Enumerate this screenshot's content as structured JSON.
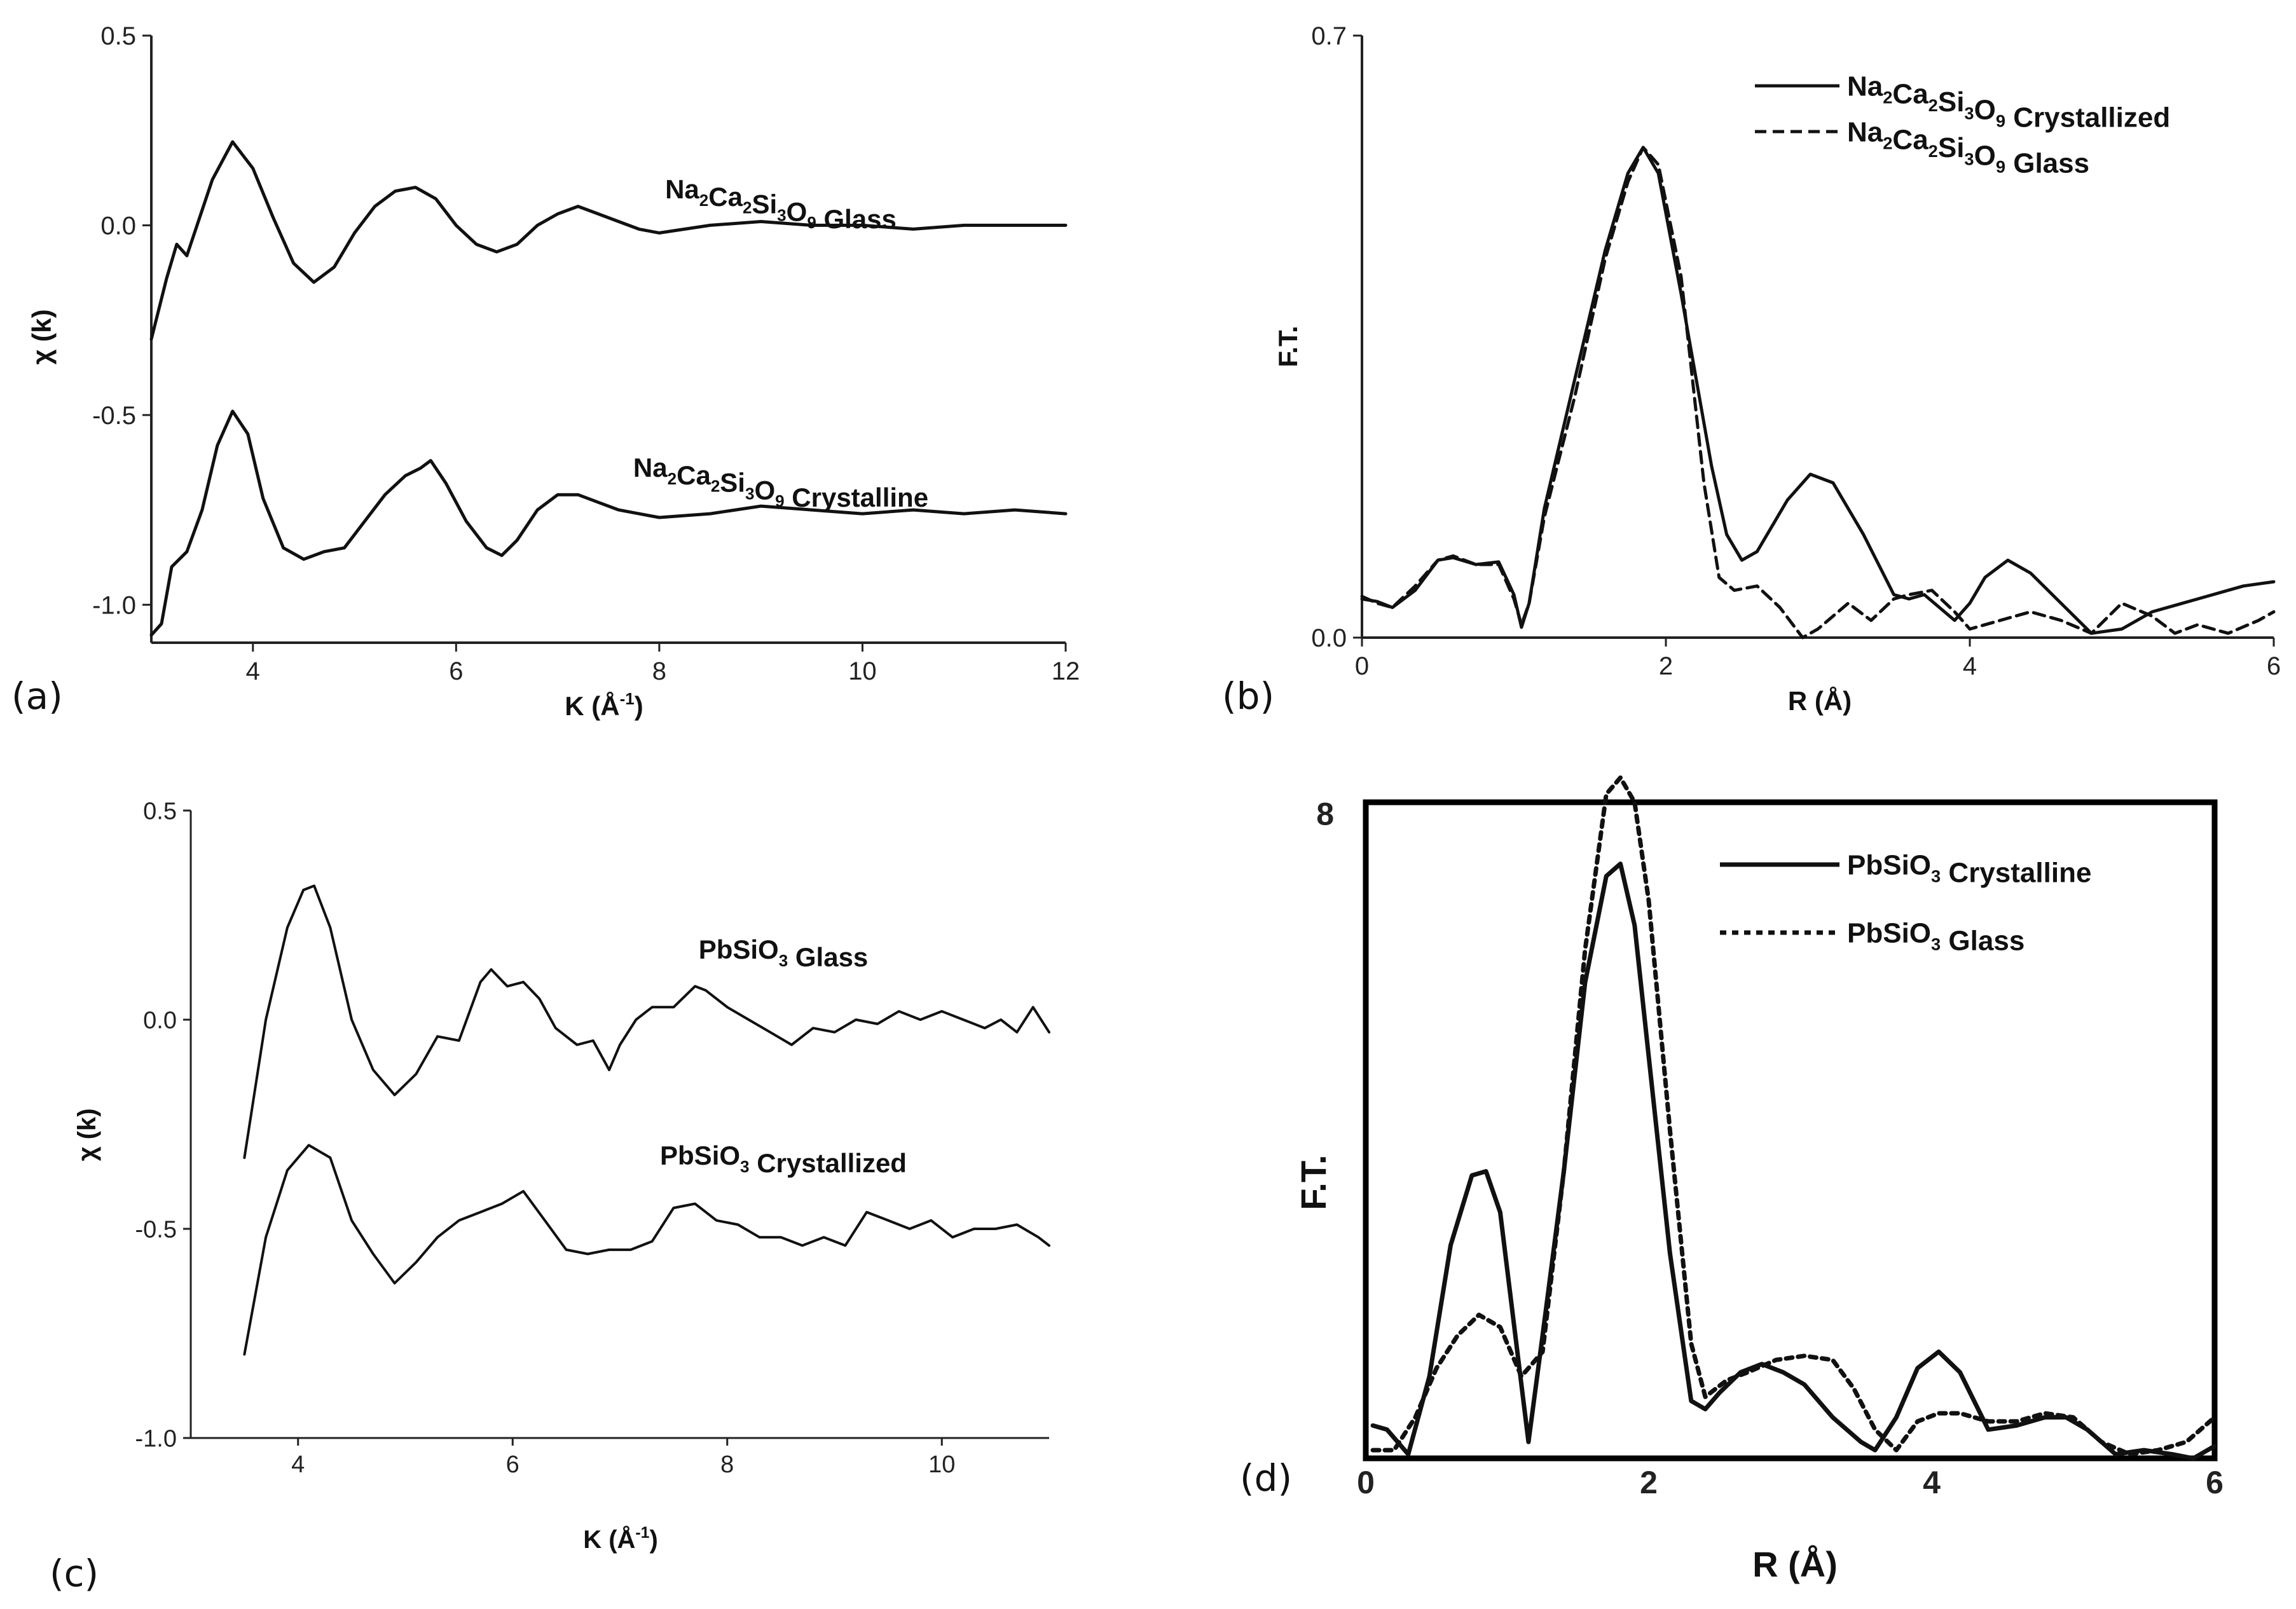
{
  "chart_data": [
    {
      "panel": "(a)",
      "type": "line",
      "xlabel": "K (Å⁻¹)",
      "ylabel": "χ (k)",
      "xlim": [
        3,
        12
      ],
      "ylim": [
        -1.1,
        0.5
      ],
      "xticks": [
        4,
        6,
        8,
        10,
        12
      ],
      "yticks": [
        0.5,
        0.0,
        -0.5,
        -1.0
      ],
      "xtick_labels": [
        "4",
        "6",
        "8",
        "10",
        "12"
      ],
      "ytick_labels": [
        "0.5",
        "0.0",
        "-0.5",
        "-1.0"
      ],
      "series": [
        {
          "name": "Na₂Ca₂Si₃O₉ Glass",
          "style": "solid",
          "x": [
            3.0,
            3.15,
            3.25,
            3.35,
            3.45,
            3.6,
            3.8,
            4.0,
            4.2,
            4.4,
            4.6,
            4.8,
            5.0,
            5.2,
            5.4,
            5.6,
            5.8,
            6.0,
            6.2,
            6.4,
            6.6,
            6.8,
            7.0,
            7.2,
            7.4,
            7.6,
            7.8,
            8.0,
            8.5,
            9.0,
            9.5,
            10.0,
            10.5,
            11.0,
            11.5,
            12.0
          ],
          "y": [
            -0.3,
            -0.14,
            -0.05,
            -0.08,
            0.0,
            0.12,
            0.22,
            0.15,
            0.02,
            -0.1,
            -0.15,
            -0.11,
            -0.02,
            0.05,
            0.09,
            0.1,
            0.07,
            0.0,
            -0.05,
            -0.07,
            -0.05,
            0.0,
            0.03,
            0.05,
            0.03,
            0.01,
            -0.01,
            -0.02,
            0.0,
            0.01,
            0.0,
            0.0,
            -0.01,
            0.0,
            0.0,
            0.0
          ]
        },
        {
          "name": "Na₂Ca₂Si₃O₉ Crystalline",
          "style": "solid",
          "x": [
            3.0,
            3.1,
            3.2,
            3.35,
            3.5,
            3.65,
            3.8,
            3.95,
            4.1,
            4.3,
            4.5,
            4.7,
            4.9,
            5.1,
            5.3,
            5.5,
            5.65,
            5.75,
            5.9,
            6.1,
            6.3,
            6.45,
            6.6,
            6.8,
            7.0,
            7.2,
            7.4,
            7.6,
            7.8,
            8.0,
            8.5,
            9.0,
            9.5,
            10.0,
            10.5,
            11.0,
            11.5,
            12.0
          ],
          "y": [
            -1.08,
            -1.05,
            -0.9,
            -0.86,
            -0.75,
            -0.58,
            -0.49,
            -0.55,
            -0.72,
            -0.85,
            -0.88,
            -0.86,
            -0.85,
            -0.78,
            -0.71,
            -0.66,
            -0.64,
            -0.62,
            -0.68,
            -0.78,
            -0.85,
            -0.87,
            -0.83,
            -0.75,
            -0.71,
            -0.71,
            -0.73,
            -0.75,
            -0.76,
            -0.77,
            -0.76,
            -0.74,
            -0.75,
            -0.76,
            -0.75,
            -0.76,
            -0.75,
            -0.76
          ]
        }
      ],
      "annotations": [
        {
          "series": "Na₂Ca₂Si₃O₉ Glass",
          "x": 8.0,
          "y": 0.085
        },
        {
          "series": "Na₂Ca₂Si₃O₉ Crystalline",
          "x": 8.0,
          "y": -0.655
        }
      ]
    },
    {
      "panel": "(b)",
      "type": "line",
      "xlabel": "R (Å)",
      "ylabel": "F.T.",
      "xlim": [
        0,
        6
      ],
      "ylim": [
        0,
        0.7
      ],
      "xticks": [
        0,
        2,
        4,
        6
      ],
      "yticks": [
        0.7,
        0.0
      ],
      "xtick_labels": [
        "0",
        "2",
        "4",
        "6"
      ],
      "ytick_labels": [
        "0.7",
        "0.0"
      ],
      "legend": "top-right",
      "series": [
        {
          "name": "Na₂Ca₂Si₃O₉ Crystallized",
          "style": "solid",
          "x": [
            0.0,
            0.1,
            0.2,
            0.35,
            0.5,
            0.6,
            0.75,
            0.9,
            1.0,
            1.05,
            1.1,
            1.2,
            1.4,
            1.6,
            1.75,
            1.85,
            1.95,
            2.1,
            2.3,
            2.4,
            2.5,
            2.6,
            2.8,
            2.95,
            3.1,
            3.3,
            3.5,
            3.6,
            3.7,
            3.8,
            3.9,
            4.0,
            4.1,
            4.25,
            4.4,
            4.6,
            4.8,
            5.0,
            5.2,
            5.5,
            5.8,
            6.0
          ],
          "y": [
            0.045,
            0.042,
            0.035,
            0.055,
            0.09,
            0.093,
            0.085,
            0.088,
            0.05,
            0.012,
            0.04,
            0.15,
            0.3,
            0.45,
            0.54,
            0.57,
            0.54,
            0.4,
            0.2,
            0.12,
            0.09,
            0.1,
            0.16,
            0.19,
            0.18,
            0.12,
            0.05,
            0.045,
            0.05,
            0.035,
            0.02,
            0.04,
            0.07,
            0.09,
            0.075,
            0.04,
            0.005,
            0.01,
            0.03,
            0.045,
            0.06,
            0.065
          ]
        },
        {
          "name": "Na₂Ca₂Si₃O₉ Glass",
          "style": "dashed",
          "x": [
            0.0,
            0.1,
            0.2,
            0.35,
            0.5,
            0.6,
            0.75,
            0.9,
            1.0,
            1.05,
            1.1,
            1.2,
            1.4,
            1.6,
            1.75,
            1.85,
            1.95,
            2.1,
            2.25,
            2.35,
            2.45,
            2.6,
            2.75,
            2.9,
            3.0,
            3.2,
            3.35,
            3.5,
            3.6,
            3.75,
            3.9,
            4.0,
            4.2,
            4.4,
            4.6,
            4.8,
            5.0,
            5.2,
            5.35,
            5.5,
            5.7,
            5.9,
            6.0
          ],
          "y": [
            0.048,
            0.04,
            0.035,
            0.06,
            0.09,
            0.095,
            0.085,
            0.085,
            0.045,
            0.015,
            0.04,
            0.14,
            0.28,
            0.44,
            0.53,
            0.57,
            0.55,
            0.42,
            0.18,
            0.07,
            0.055,
            0.06,
            0.035,
            0.0,
            0.01,
            0.04,
            0.02,
            0.045,
            0.05,
            0.055,
            0.03,
            0.01,
            0.02,
            0.03,
            0.02,
            0.005,
            0.04,
            0.025,
            0.005,
            0.015,
            0.005,
            0.02,
            0.03
          ]
        }
      ]
    },
    {
      "panel": "(c)",
      "type": "line",
      "xlabel": "K (Å⁻¹)",
      "ylabel": "χ (k)",
      "xlim": [
        3,
        11
      ],
      "ylim": [
        -1.0,
        0.5
      ],
      "xticks": [
        4,
        6,
        8,
        10
      ],
      "yticks": [
        0.5,
        0.0,
        -0.5,
        -1.0
      ],
      "xtick_labels": [
        "4",
        "6",
        "8",
        "10"
      ],
      "ytick_labels": [
        "0.5",
        "0.0",
        "-0.5",
        "-1.0"
      ],
      "series": [
        {
          "name": "PbSiO₃ Glass",
          "style": "solid",
          "x": [
            3.5,
            3.7,
            3.9,
            4.05,
            4.15,
            4.3,
            4.5,
            4.7,
            4.9,
            5.1,
            5.3,
            5.5,
            5.7,
            5.8,
            5.95,
            6.1,
            6.25,
            6.4,
            6.6,
            6.75,
            6.9,
            7.0,
            7.15,
            7.3,
            7.5,
            7.7,
            7.8,
            8.0,
            8.2,
            8.4,
            8.6,
            8.8,
            9.0,
            9.2,
            9.4,
            9.6,
            9.8,
            10.0,
            10.2,
            10.4,
            10.55,
            10.7,
            10.85,
            11.0
          ],
          "y": [
            -0.33,
            0.0,
            0.22,
            0.31,
            0.32,
            0.22,
            0.0,
            -0.12,
            -0.18,
            -0.13,
            -0.04,
            -0.05,
            0.09,
            0.12,
            0.08,
            0.09,
            0.05,
            -0.02,
            -0.06,
            -0.05,
            -0.12,
            -0.06,
            0.0,
            0.03,
            0.03,
            0.08,
            0.07,
            0.03,
            0.0,
            -0.03,
            -0.06,
            -0.02,
            -0.03,
            0.0,
            -0.01,
            0.02,
            0.0,
            0.02,
            0.0,
            -0.02,
            0.0,
            -0.03,
            0.03,
            -0.03
          ]
        },
        {
          "name": "PbSiO₃ Crystallized",
          "style": "solid",
          "x": [
            3.5,
            3.7,
            3.9,
            4.1,
            4.3,
            4.5,
            4.7,
            4.9,
            5.1,
            5.3,
            5.5,
            5.7,
            5.9,
            6.1,
            6.3,
            6.5,
            6.7,
            6.9,
            7.1,
            7.3,
            7.5,
            7.7,
            7.9,
            8.1,
            8.3,
            8.5,
            8.7,
            8.9,
            9.1,
            9.3,
            9.5,
            9.7,
            9.9,
            10.1,
            10.3,
            10.5,
            10.7,
            10.9,
            11.0
          ],
          "y": [
            -0.8,
            -0.52,
            -0.36,
            -0.3,
            -0.33,
            -0.48,
            -0.56,
            -0.63,
            -0.58,
            -0.52,
            -0.48,
            -0.46,
            -0.44,
            -0.41,
            -0.48,
            -0.55,
            -0.56,
            -0.55,
            -0.55,
            -0.53,
            -0.45,
            -0.44,
            -0.48,
            -0.49,
            -0.52,
            -0.52,
            -0.54,
            -0.52,
            -0.54,
            -0.46,
            -0.48,
            -0.5,
            -0.48,
            -0.52,
            -0.5,
            -0.5,
            -0.49,
            -0.52,
            -0.54
          ]
        }
      ],
      "annotations": [
        {
          "series": "PbSiO₃ Glass",
          "x": 7.65,
          "y": 0.125
        },
        {
          "series": "PbSiO₃ Crystallized",
          "x": 7.65,
          "y": -0.355
        }
      ]
    },
    {
      "panel": "(d)",
      "type": "line",
      "xlabel": "R (Å)",
      "ylabel": "F.T.",
      "xlim": [
        0,
        6
      ],
      "ylim": [
        0,
        8
      ],
      "xticks": [
        0,
        2,
        4,
        6
      ],
      "yticks": [
        8
      ],
      "xtick_labels": [
        "0",
        "2",
        "4",
        "6"
      ],
      "ytick_labels": [
        "8"
      ],
      "legend": "top-right",
      "series": [
        {
          "name": "PbSiO₃ Crystalline",
          "style": "solid",
          "x": [
            0.05,
            0.15,
            0.3,
            0.45,
            0.6,
            0.75,
            0.85,
            0.95,
            1.05,
            1.15,
            1.25,
            1.4,
            1.55,
            1.7,
            1.8,
            1.9,
            2.0,
            2.15,
            2.3,
            2.4,
            2.5,
            2.65,
            2.8,
            2.95,
            3.1,
            3.3,
            3.5,
            3.6,
            3.75,
            3.9,
            4.05,
            4.2,
            4.4,
            4.6,
            4.8,
            4.95,
            5.1,
            5.3,
            5.5,
            5.7,
            5.85,
            6.0
          ],
          "y": [
            0.4,
            0.35,
            0.05,
            1.0,
            2.6,
            3.45,
            3.5,
            3.0,
            1.6,
            0.2,
            1.5,
            3.5,
            5.8,
            7.1,
            7.25,
            6.5,
            4.9,
            2.5,
            0.7,
            0.6,
            0.8,
            1.05,
            1.15,
            1.05,
            0.9,
            0.5,
            0.2,
            0.1,
            0.5,
            1.1,
            1.3,
            1.05,
            0.35,
            0.4,
            0.5,
            0.5,
            0.35,
            0.05,
            0.1,
            0.05,
            0.0,
            0.15
          ]
        },
        {
          "name": "PbSiO₃ Glass",
          "style": "dotted",
          "x": [
            0.05,
            0.2,
            0.35,
            0.5,
            0.65,
            0.8,
            0.95,
            1.1,
            1.25,
            1.4,
            1.55,
            1.7,
            1.8,
            1.9,
            2.0,
            2.15,
            2.3,
            2.4,
            2.55,
            2.7,
            2.9,
            3.1,
            3.3,
            3.45,
            3.6,
            3.75,
            3.9,
            4.05,
            4.2,
            4.4,
            4.6,
            4.8,
            5.0,
            5.2,
            5.4,
            5.6,
            5.8,
            6.0
          ],
          "y": [
            0.1,
            0.1,
            0.5,
            1.1,
            1.5,
            1.75,
            1.6,
            1.0,
            1.3,
            3.5,
            6.2,
            8.1,
            8.3,
            8.0,
            6.8,
            4.0,
            1.4,
            0.75,
            0.95,
            1.05,
            1.2,
            1.25,
            1.2,
            0.85,
            0.35,
            0.1,
            0.45,
            0.55,
            0.55,
            0.45,
            0.45,
            0.55,
            0.5,
            0.2,
            0.05,
            0.1,
            0.2,
            0.5
          ]
        }
      ]
    }
  ],
  "panel_tags": [
    "(a)",
    "(b)",
    "(c)",
    "(d)"
  ]
}
